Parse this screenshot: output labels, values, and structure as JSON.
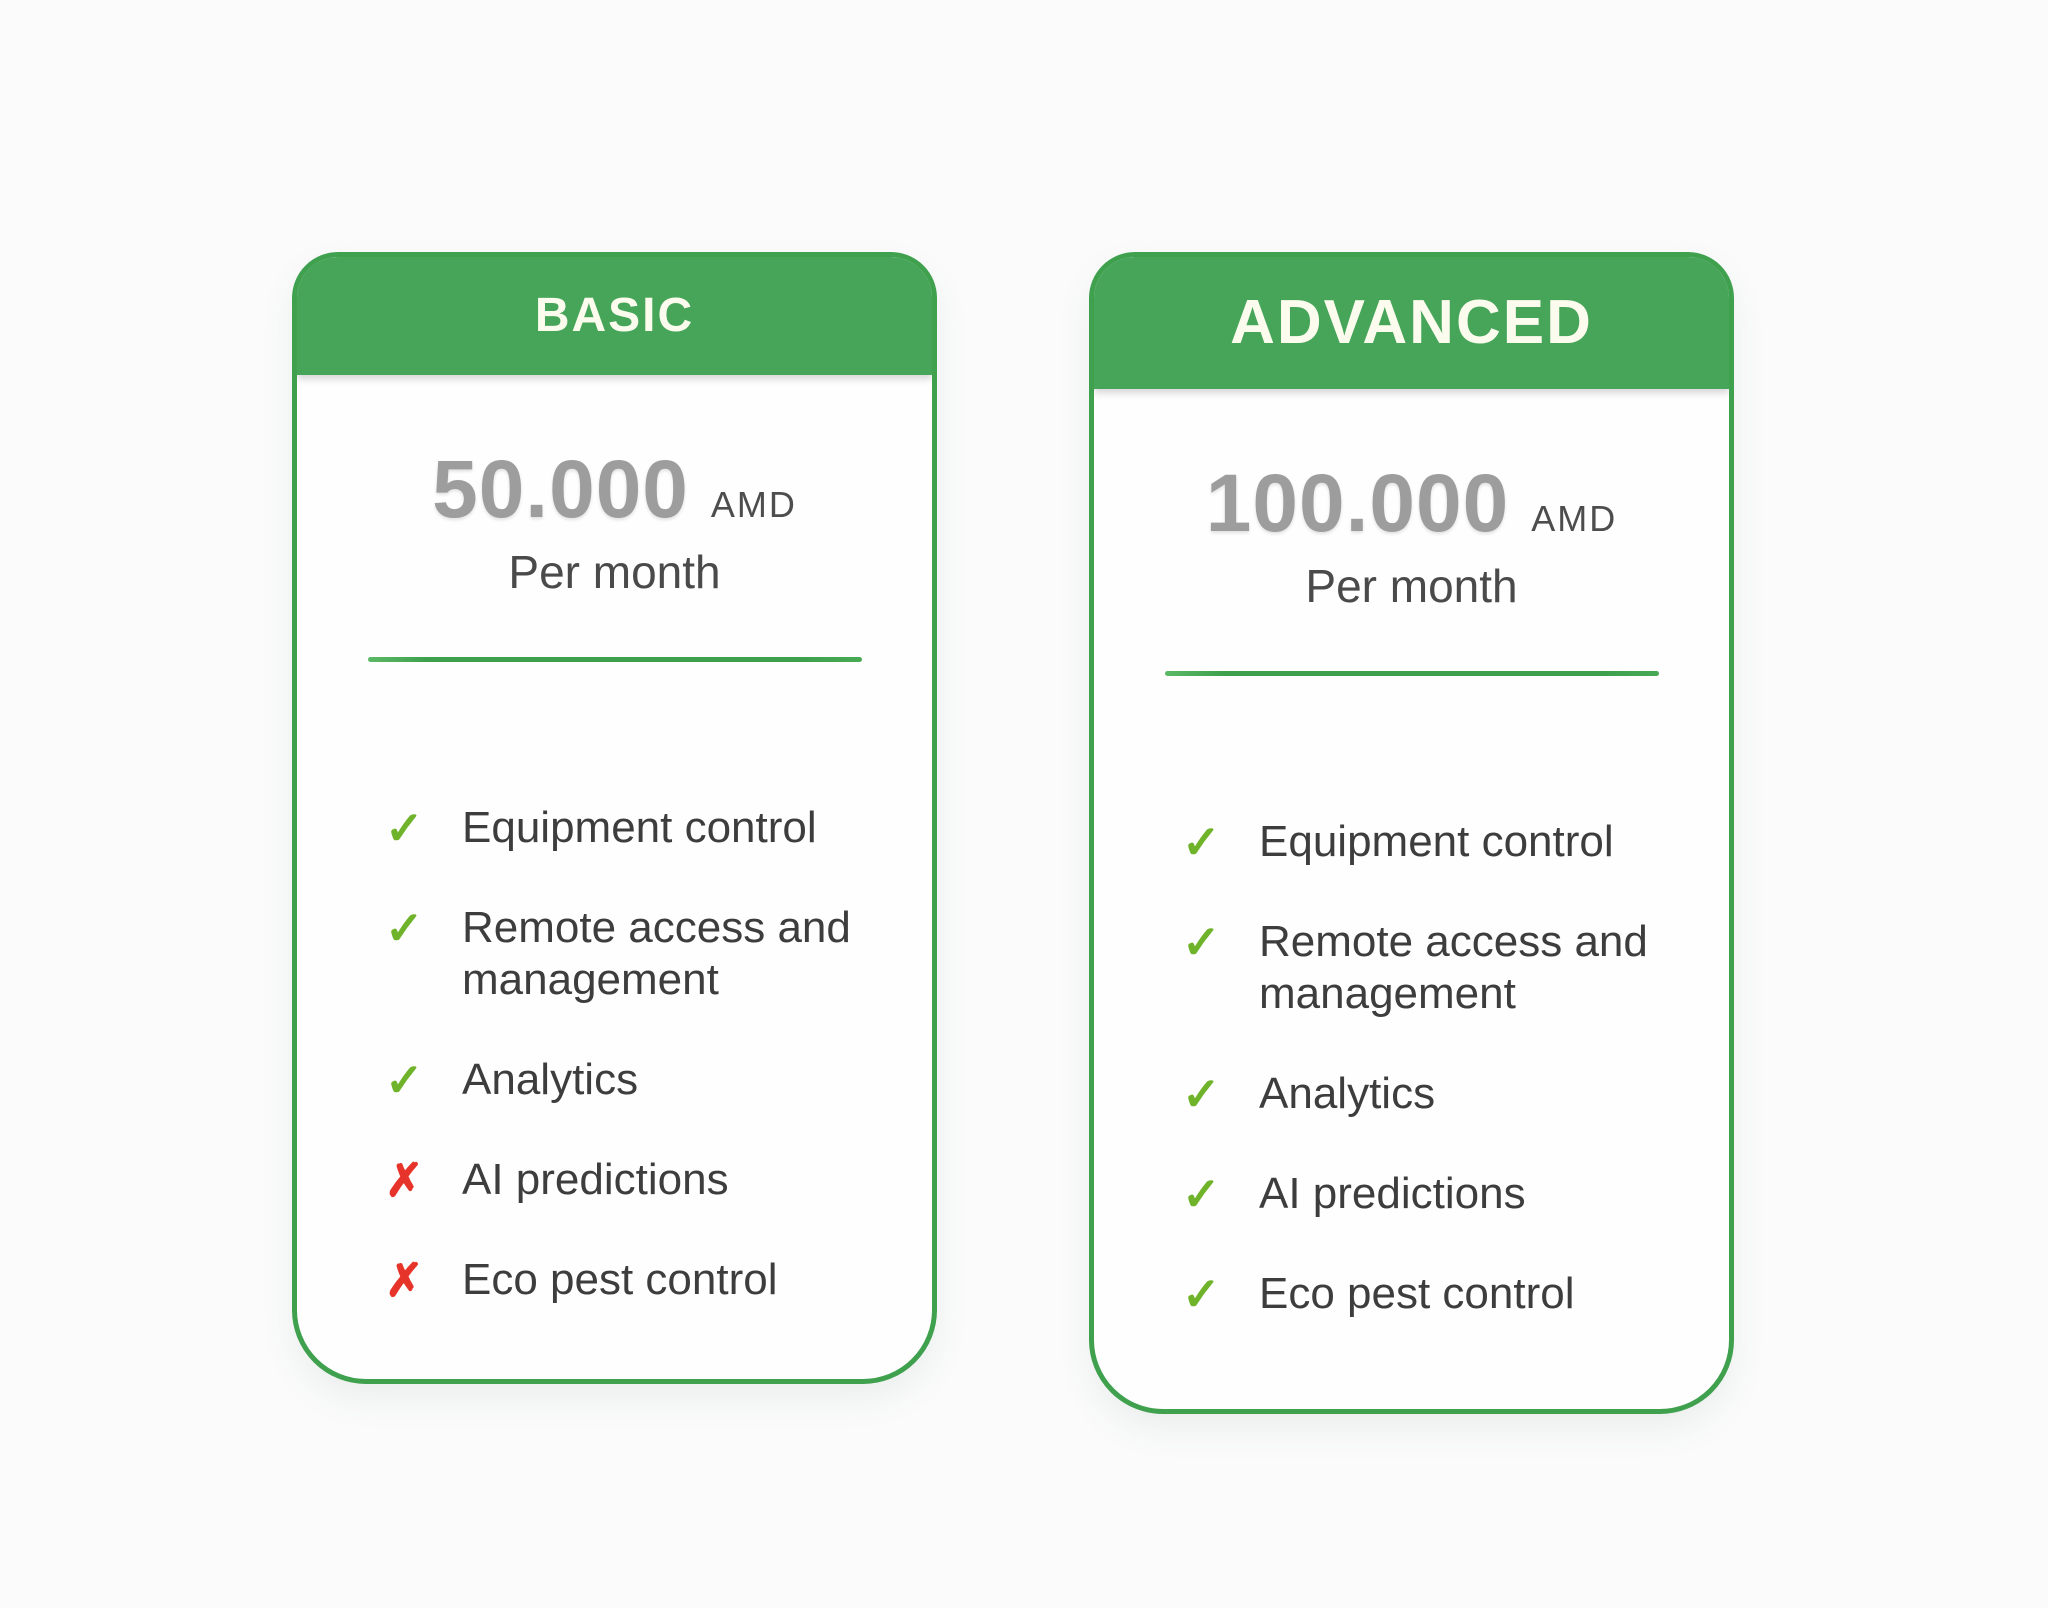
{
  "page": {
    "background_color": "#fbfbfc"
  },
  "colors": {
    "header_green": "#47a55a",
    "border_green": "#3fa04e",
    "divider_green": "#3ea04c",
    "check_green": "#6fb32a",
    "cross_red": "#e7342a",
    "price_gray": "#9d9d9d",
    "text_dark": "#3d3d3d",
    "title_white": "#fcfcee"
  },
  "icons": {
    "check": "✓",
    "cross": "✗"
  },
  "plans": [
    {
      "id": "basic",
      "title": "BASIC",
      "price": "50.000",
      "currency": "AMD",
      "period": "Per month",
      "features": [
        {
          "label": "Equipment control",
          "included": true
        },
        {
          "label": "Remote access and management",
          "included": true
        },
        {
          "label": "Analytics",
          "included": true
        },
        {
          "label": "AI predictions",
          "included": false
        },
        {
          "label": "Eco pest control",
          "included": false
        }
      ]
    },
    {
      "id": "advanced",
      "title": "ADVANCED",
      "price": "100.000",
      "currency": "AMD",
      "period": "Per month",
      "features": [
        {
          "label": "Equipment control",
          "included": true
        },
        {
          "label": "Remote access and management",
          "included": true
        },
        {
          "label": "Analytics",
          "included": true
        },
        {
          "label": "AI predictions",
          "included": true
        },
        {
          "label": "Eco pest control",
          "included": true
        }
      ]
    }
  ]
}
